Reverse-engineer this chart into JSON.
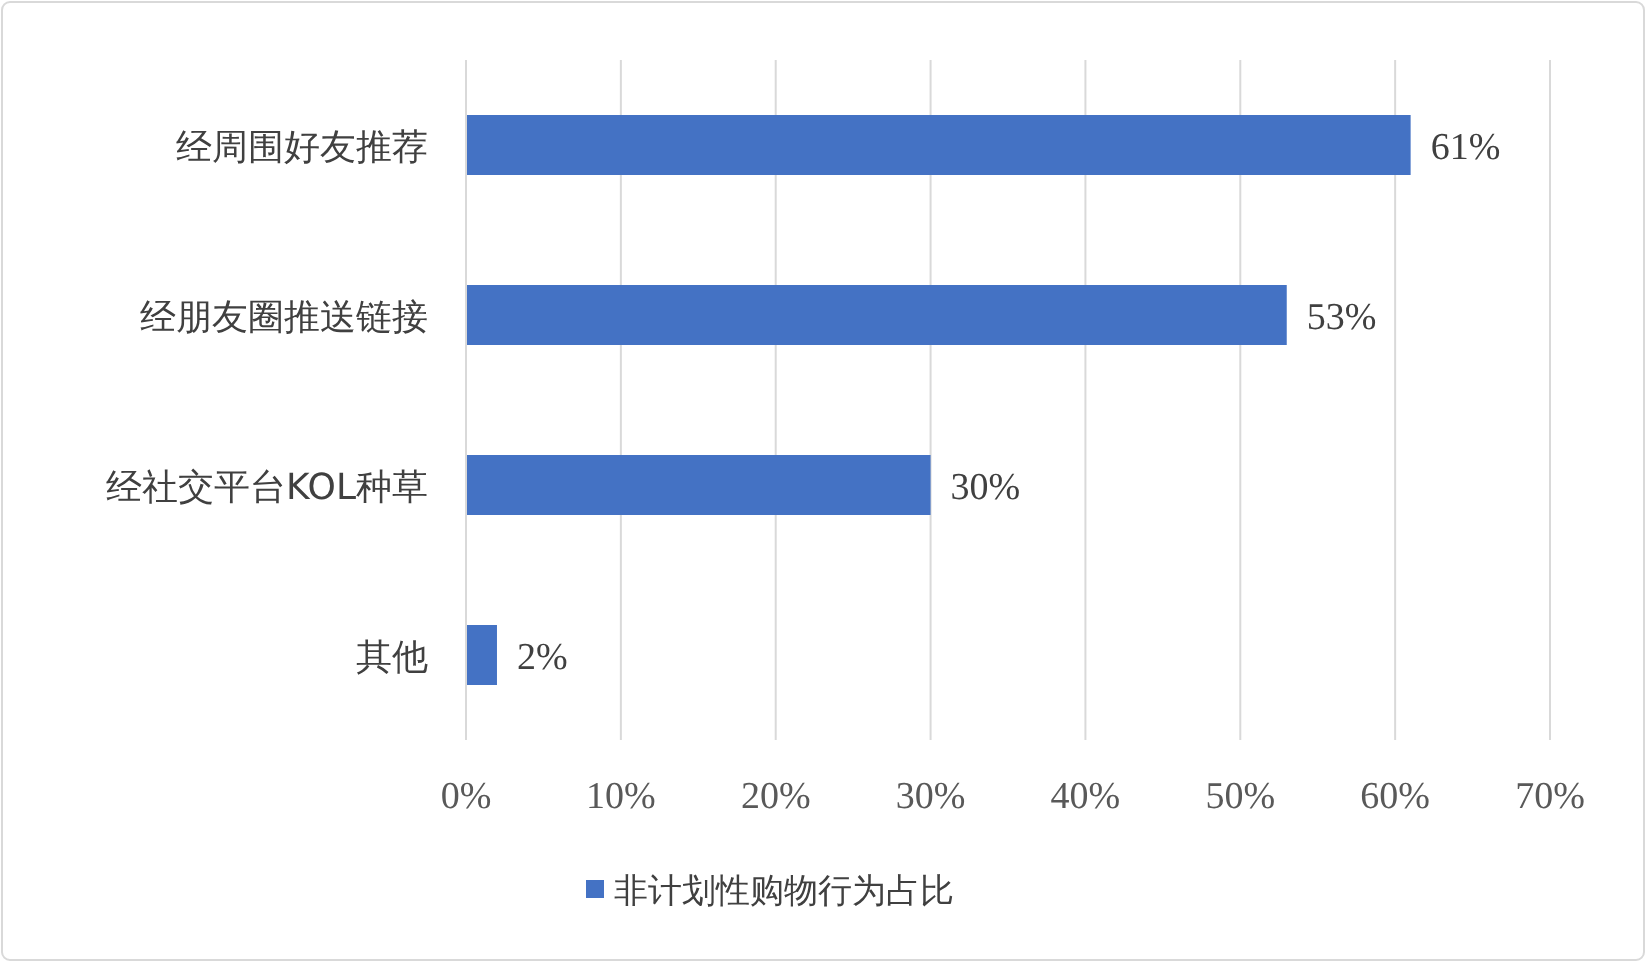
{
  "chart_data": {
    "type": "bar",
    "orientation": "horizontal",
    "categories": [
      "经周围好友推荐",
      "经朋友圈推送链接",
      "经社交平台KOL种草",
      "其他"
    ],
    "series": [
      {
        "name": "非计划性购物行为占比",
        "color": "#4472c4",
        "values": [
          61,
          53,
          30,
          2
        ],
        "value_labels": [
          "61%",
          "53%",
          "30%",
          "2%"
        ]
      }
    ],
    "xlim": [
      0,
      70
    ],
    "xticks": [
      {
        "value": 0,
        "label": "0%"
      },
      {
        "value": 10,
        "label": "10%"
      },
      {
        "value": 20,
        "label": "20%"
      },
      {
        "value": 30,
        "label": "30%"
      },
      {
        "value": 40,
        "label": "40%"
      },
      {
        "value": 50,
        "label": "50%"
      },
      {
        "value": 60,
        "label": "60%"
      },
      {
        "value": 70,
        "label": "70%"
      }
    ],
    "grid": "x",
    "legend": "bottom"
  }
}
